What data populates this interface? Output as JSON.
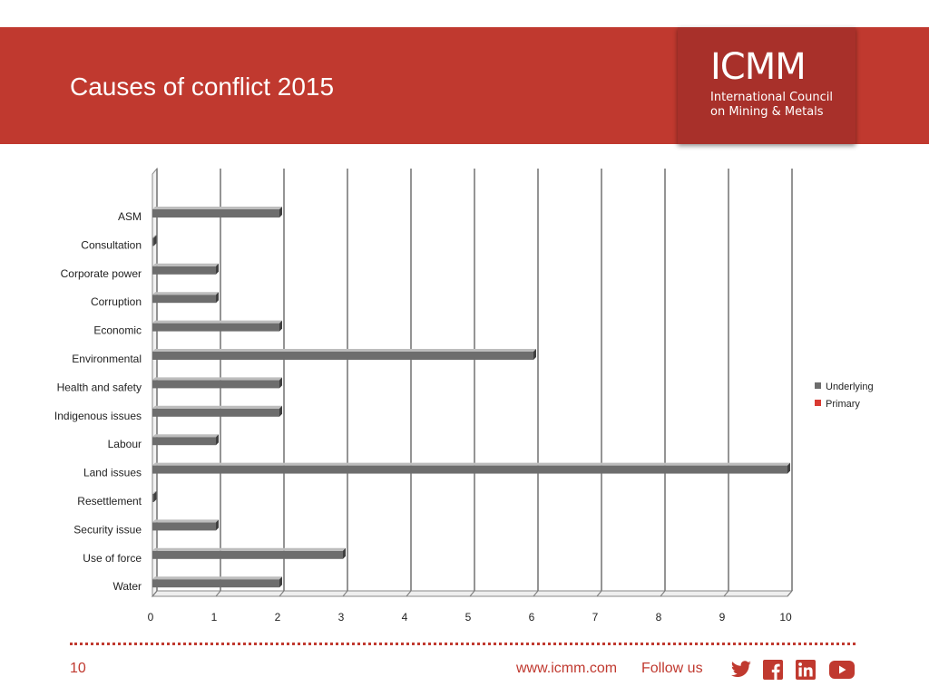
{
  "slide": {
    "title": "Causes of conflict 2015",
    "logo": {
      "name": "ICMM",
      "line1": "International Council",
      "line2": "on Mining & Metals"
    },
    "page_number": "10",
    "website": "www.icmm.com",
    "follow_label": "Follow us",
    "social_icons": [
      "twitter-icon",
      "facebook-icon",
      "linkedin-icon",
      "youtube-icon"
    ]
  },
  "colors": {
    "brand_red": "#c0392f",
    "logo_red": "#a8302a",
    "underlying": "#6d6d6d",
    "primary": "#d93a32"
  },
  "chart_data": {
    "type": "bar",
    "orientation": "horizontal",
    "style": "3d",
    "categories": [
      "ASM",
      "Consultation",
      "Corporate power",
      "Corruption",
      "Economic",
      "Environmental",
      "Health and safety",
      "Indigenous issues",
      "Labour",
      "Land issues",
      "Resettlement",
      "Security issue",
      "Use of force",
      "Water"
    ],
    "series": [
      {
        "name": "Underlying",
        "values": [
          2,
          0,
          1,
          1,
          2,
          6,
          2,
          2,
          1,
          10,
          0,
          1,
          3,
          2
        ]
      },
      {
        "name": "Primary",
        "values": [
          0,
          0,
          0,
          0,
          0,
          0,
          0,
          0,
          0,
          0,
          0,
          0,
          0,
          0
        ]
      }
    ],
    "xlim": [
      0,
      10
    ],
    "xticks": [
      "0",
      "1",
      "2",
      "3",
      "4",
      "5",
      "6",
      "7",
      "8",
      "9",
      "10"
    ],
    "grid": true,
    "legend": "right"
  }
}
